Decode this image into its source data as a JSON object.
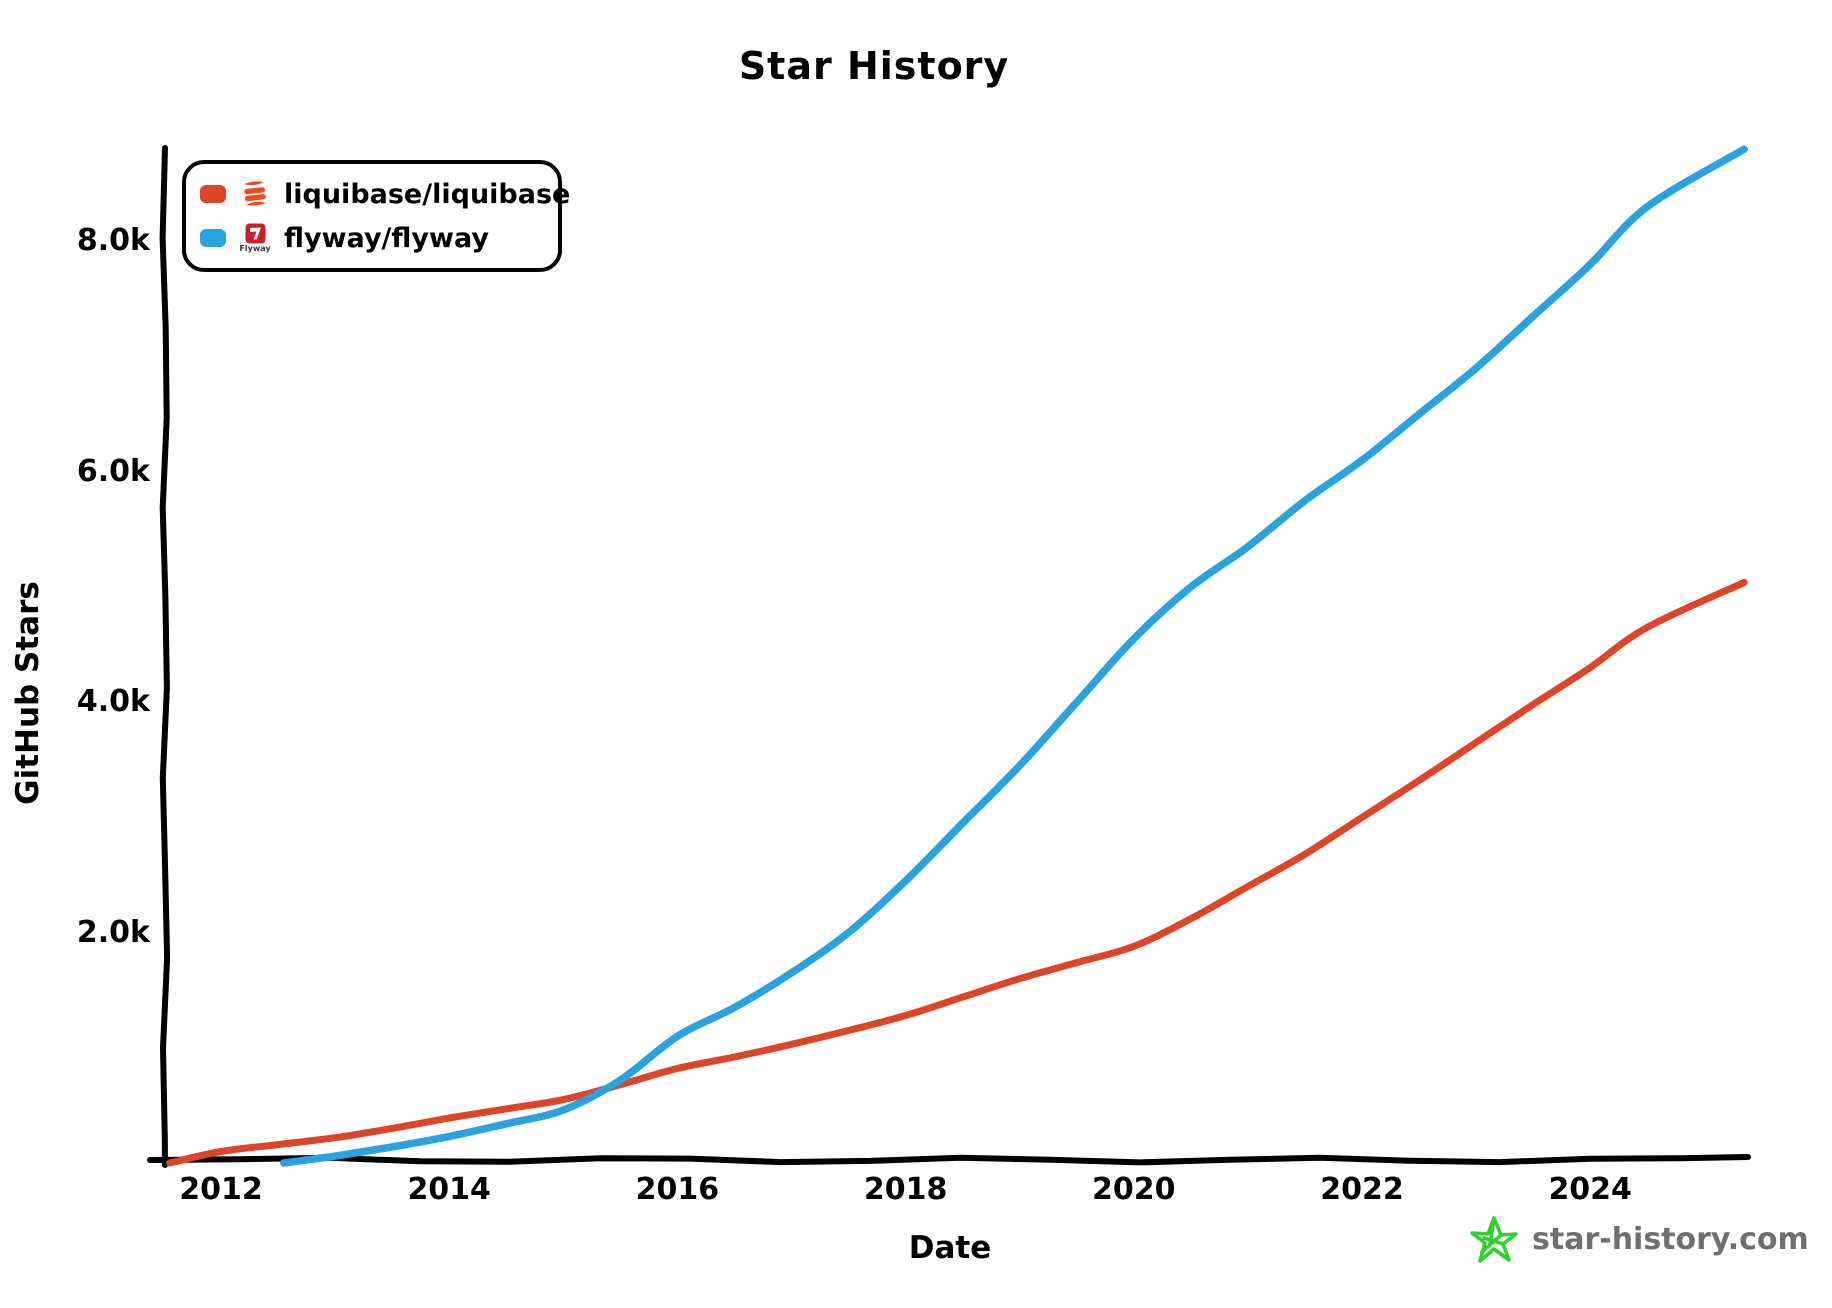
{
  "title": "Star History",
  "x_axis_label": "Date",
  "y_axis_label": "GitHub Stars",
  "footer": {
    "site": "star-history.com",
    "text_color": "#6f6f6f",
    "star_icon_color": "#2fd22f"
  },
  "legend": [
    {
      "label": "liquibase/liquibase",
      "color": "#dd4528",
      "icon": "liquibase-logo",
      "logo_color": "#f2491f"
    },
    {
      "label": "flyway/flyway",
      "color": "#28a3dd",
      "icon": "flyway-logo",
      "logo_text": "Flyway",
      "logo_color": "#cc2027"
    }
  ],
  "chart_data": {
    "type": "line",
    "title": "Star History",
    "xlabel": "Date",
    "ylabel": "GitHub Stars",
    "grid": false,
    "legend_position": "top-left",
    "axis_color": "#000000",
    "xlim": [
      2011.5,
      2025.45
    ],
    "ylim": [
      0,
      8900
    ],
    "x_ticks": [
      {
        "value": 2012,
        "label": "2012"
      },
      {
        "value": 2014,
        "label": "2014"
      },
      {
        "value": 2016,
        "label": "2016"
      },
      {
        "value": 2018,
        "label": "2018"
      },
      {
        "value": 2020,
        "label": "2020"
      },
      {
        "value": 2022,
        "label": "2022"
      },
      {
        "value": 2024,
        "label": "2024"
      }
    ],
    "y_ticks": [
      {
        "value": 2000,
        "label": "2.0k"
      },
      {
        "value": 4000,
        "label": "4.0k"
      },
      {
        "value": 6000,
        "label": "6.0k"
      },
      {
        "value": 8000,
        "label": "8.0k"
      }
    ],
    "series": [
      {
        "name": "liquibase/liquibase",
        "color": "#dd4528",
        "stroke_width": 7,
        "points": [
          [
            2011.55,
            0
          ],
          [
            2012,
            100
          ],
          [
            2012.5,
            160
          ],
          [
            2013,
            220
          ],
          [
            2013.5,
            300
          ],
          [
            2014,
            390
          ],
          [
            2014.5,
            470
          ],
          [
            2015,
            550
          ],
          [
            2015.5,
            680
          ],
          [
            2016,
            820
          ],
          [
            2016.5,
            920
          ],
          [
            2017,
            1030
          ],
          [
            2017.5,
            1150
          ],
          [
            2018,
            1280
          ],
          [
            2018.5,
            1440
          ],
          [
            2019,
            1600
          ],
          [
            2019.5,
            1740
          ],
          [
            2020,
            1880
          ],
          [
            2020.5,
            2120
          ],
          [
            2021,
            2400
          ],
          [
            2021.5,
            2680
          ],
          [
            2022,
            3000
          ],
          [
            2022.5,
            3320
          ],
          [
            2023,
            3650
          ],
          [
            2023.5,
            3980
          ],
          [
            2024,
            4300
          ],
          [
            2024.5,
            4650
          ],
          [
            2025.35,
            5040
          ]
        ]
      },
      {
        "name": "flyway/flyway",
        "color": "#28a3dd",
        "stroke_width": 7.5,
        "points": [
          [
            2012.55,
            0
          ],
          [
            2013,
            60
          ],
          [
            2013.5,
            140
          ],
          [
            2014,
            230
          ],
          [
            2014.5,
            340
          ],
          [
            2015,
            460
          ],
          [
            2015.5,
            720
          ],
          [
            2016,
            1100
          ],
          [
            2016.5,
            1350
          ],
          [
            2017,
            1650
          ],
          [
            2017.5,
            2000
          ],
          [
            2018,
            2450
          ],
          [
            2018.5,
            2950
          ],
          [
            2019,
            3450
          ],
          [
            2019.5,
            4000
          ],
          [
            2020,
            4550
          ],
          [
            2020.5,
            5000
          ],
          [
            2021,
            5350
          ],
          [
            2021.5,
            5750
          ],
          [
            2022,
            6100
          ],
          [
            2022.5,
            6500
          ],
          [
            2023,
            6900
          ],
          [
            2023.5,
            7350
          ],
          [
            2024,
            7800
          ],
          [
            2024.5,
            8300
          ],
          [
            2025.35,
            8800
          ]
        ]
      }
    ]
  }
}
